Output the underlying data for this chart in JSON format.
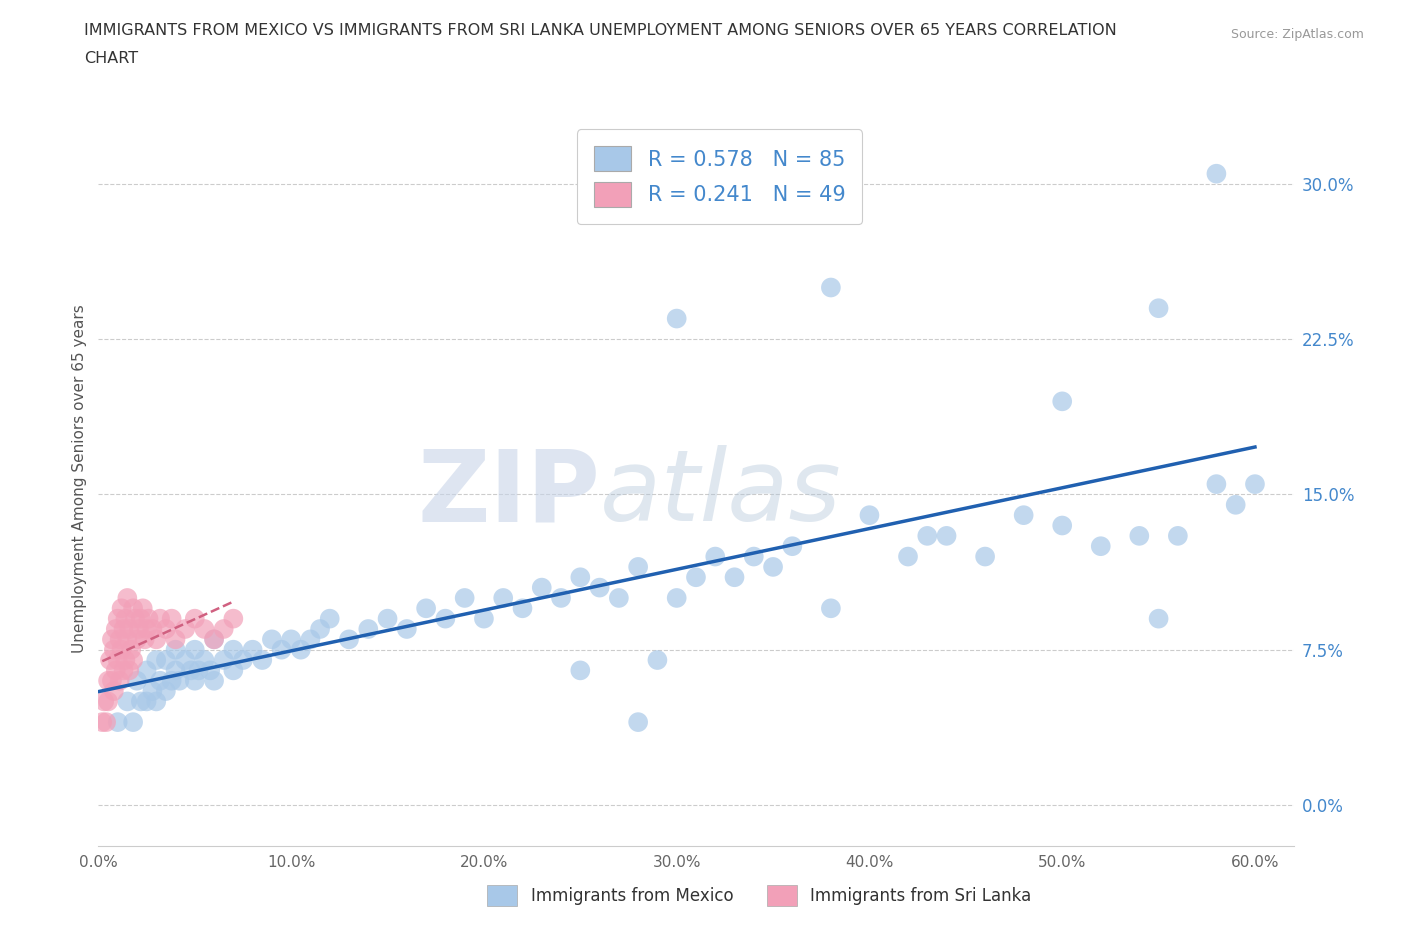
{
  "title_line1": "IMMIGRANTS FROM MEXICO VS IMMIGRANTS FROM SRI LANKA UNEMPLOYMENT AMONG SENIORS OVER 65 YEARS CORRELATION",
  "title_line2": "CHART",
  "source_text": "Source: ZipAtlas.com",
  "ylabel": "Unemployment Among Seniors over 65 years",
  "xlim": [
    0.0,
    0.62
  ],
  "ylim": [
    -0.02,
    0.335
  ],
  "x_ticks": [
    0.0,
    0.1,
    0.2,
    0.3,
    0.4,
    0.5,
    0.6
  ],
  "x_tick_labels": [
    "0.0%",
    "10.0%",
    "20.0%",
    "30.0%",
    "40.0%",
    "50.0%",
    "60.0%"
  ],
  "y_ticks": [
    0.0,
    0.075,
    0.15,
    0.225,
    0.3
  ],
  "y_tick_labels": [
    "0.0%",
    "7.5%",
    "15.0%",
    "22.5%",
    "30.0%"
  ],
  "watermark_zip": "ZIP",
  "watermark_atlas": "atlas",
  "legend_mexico_R": "0.578",
  "legend_mexico_N": "85",
  "legend_srilanka_R": "0.241",
  "legend_srilanka_N": "49",
  "mexico_color": "#a8c8e8",
  "srilanka_color": "#f2a0b8",
  "mexico_line_color": "#2060b0",
  "srilanka_line_color": "#d06080",
  "background_color": "#ffffff",
  "grid_color": "#cccccc",
  "tick_color": "#4488cc",
  "mexico_x": [
    0.01,
    0.015,
    0.018,
    0.02,
    0.022,
    0.025,
    0.025,
    0.028,
    0.03,
    0.03,
    0.032,
    0.035,
    0.035,
    0.038,
    0.04,
    0.04,
    0.042,
    0.045,
    0.048,
    0.05,
    0.05,
    0.052,
    0.055,
    0.058,
    0.06,
    0.06,
    0.065,
    0.07,
    0.07,
    0.075,
    0.08,
    0.085,
    0.09,
    0.095,
    0.1,
    0.105,
    0.11,
    0.115,
    0.12,
    0.13,
    0.14,
    0.15,
    0.16,
    0.17,
    0.18,
    0.19,
    0.2,
    0.21,
    0.22,
    0.23,
    0.24,
    0.25,
    0.26,
    0.27,
    0.28,
    0.29,
    0.3,
    0.31,
    0.32,
    0.33,
    0.34,
    0.36,
    0.38,
    0.4,
    0.42,
    0.44,
    0.46,
    0.48,
    0.5,
    0.52,
    0.54,
    0.55,
    0.56,
    0.58,
    0.59,
    0.6,
    0.38,
    0.3,
    0.55,
    0.58,
    0.25,
    0.5,
    0.43,
    0.35,
    0.28
  ],
  "mexico_y": [
    0.04,
    0.05,
    0.04,
    0.06,
    0.05,
    0.05,
    0.065,
    0.055,
    0.05,
    0.07,
    0.06,
    0.055,
    0.07,
    0.06,
    0.065,
    0.075,
    0.06,
    0.07,
    0.065,
    0.06,
    0.075,
    0.065,
    0.07,
    0.065,
    0.06,
    0.08,
    0.07,
    0.075,
    0.065,
    0.07,
    0.075,
    0.07,
    0.08,
    0.075,
    0.08,
    0.075,
    0.08,
    0.085,
    0.09,
    0.08,
    0.085,
    0.09,
    0.085,
    0.095,
    0.09,
    0.1,
    0.09,
    0.1,
    0.095,
    0.105,
    0.1,
    0.11,
    0.105,
    0.1,
    0.115,
    0.07,
    0.1,
    0.11,
    0.12,
    0.11,
    0.12,
    0.125,
    0.095,
    0.14,
    0.12,
    0.13,
    0.12,
    0.14,
    0.135,
    0.125,
    0.13,
    0.09,
    0.13,
    0.155,
    0.145,
    0.155,
    0.25,
    0.235,
    0.24,
    0.305,
    0.065,
    0.195,
    0.13,
    0.115,
    0.04
  ],
  "srilanka_x": [
    0.002,
    0.003,
    0.004,
    0.005,
    0.005,
    0.006,
    0.007,
    0.007,
    0.008,
    0.008,
    0.009,
    0.009,
    0.01,
    0.01,
    0.011,
    0.011,
    0.012,
    0.012,
    0.013,
    0.013,
    0.014,
    0.014,
    0.015,
    0.015,
    0.016,
    0.016,
    0.017,
    0.018,
    0.018,
    0.019,
    0.02,
    0.021,
    0.022,
    0.023,
    0.024,
    0.025,
    0.026,
    0.028,
    0.03,
    0.032,
    0.035,
    0.038,
    0.04,
    0.045,
    0.05,
    0.055,
    0.06,
    0.065,
    0.07
  ],
  "srilanka_y": [
    0.04,
    0.05,
    0.04,
    0.06,
    0.05,
    0.07,
    0.06,
    0.08,
    0.055,
    0.075,
    0.065,
    0.085,
    0.07,
    0.09,
    0.06,
    0.08,
    0.075,
    0.095,
    0.065,
    0.085,
    0.07,
    0.09,
    0.08,
    0.1,
    0.065,
    0.085,
    0.075,
    0.095,
    0.07,
    0.09,
    0.08,
    0.085,
    0.09,
    0.095,
    0.08,
    0.085,
    0.09,
    0.085,
    0.08,
    0.09,
    0.085,
    0.09,
    0.08,
    0.085,
    0.09,
    0.085,
    0.08,
    0.085,
    0.09
  ]
}
